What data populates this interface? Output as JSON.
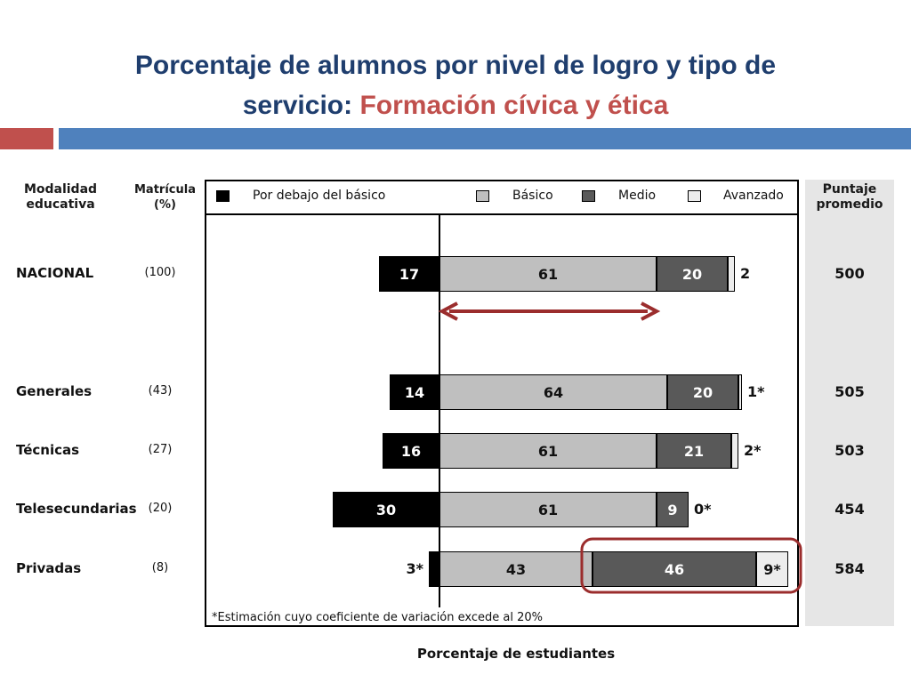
{
  "title": {
    "line1": "Porcentaje de alumnos por nivel de logro y tipo de",
    "line2_prefix": "servicio: ",
    "line2_accent": "Formación cívica y ética"
  },
  "headers": {
    "modalidad": "Modalidad educativa",
    "matricula": "Matrícula (%)",
    "puntaje": "Puntaje promedio"
  },
  "legend": [
    "Por debajo del básico",
    "Básico",
    "Medio",
    "Avanzado"
  ],
  "colors": {
    "title": "#1f3e6e",
    "accent": "#c0504d",
    "banner": "#4f81bd",
    "below": "#000000",
    "basic": "#bfbfbf",
    "medium": "#595959",
    "advanced": "#ededed",
    "highlight": "#9b2d2d"
  },
  "footnote": "*Estimación cuyo coeficiente de variación excede al 20%",
  "xlabel": "Porcentaje de estudiantes",
  "chart_data": {
    "type": "bar",
    "orientation": "horizontal",
    "stacked": "diverging",
    "categories": [
      "NACIONAL",
      "Generales",
      "Técnicas",
      "Telesecundarias",
      "Privadas"
    ],
    "matricula": [
      "(100)",
      "(43)",
      "(27)",
      "(20)",
      "(8)"
    ],
    "series": [
      {
        "name": "Por debajo del básico",
        "values": [
          17,
          14,
          16,
          30,
          3
        ],
        "labels": [
          "17",
          "14",
          "16",
          "30",
          "3*"
        ]
      },
      {
        "name": "Básico",
        "values": [
          61,
          64,
          61,
          61,
          43
        ],
        "labels": [
          "61",
          "64",
          "61",
          "61",
          "43"
        ]
      },
      {
        "name": "Medio",
        "values": [
          20,
          20,
          21,
          9,
          46
        ],
        "labels": [
          "20",
          "20",
          "21",
          "9",
          "46"
        ]
      },
      {
        "name": "Avanzado",
        "values": [
          2,
          1,
          2,
          0,
          9
        ],
        "labels": [
          "2",
          "1*",
          "2*",
          "0*",
          "9*"
        ]
      }
    ],
    "puntaje_promedio": [
      "500",
      "505",
      "503",
      "454",
      "584"
    ],
    "xlabel": "Porcentaje de estudiantes",
    "grid": false,
    "legend_position": "top"
  }
}
